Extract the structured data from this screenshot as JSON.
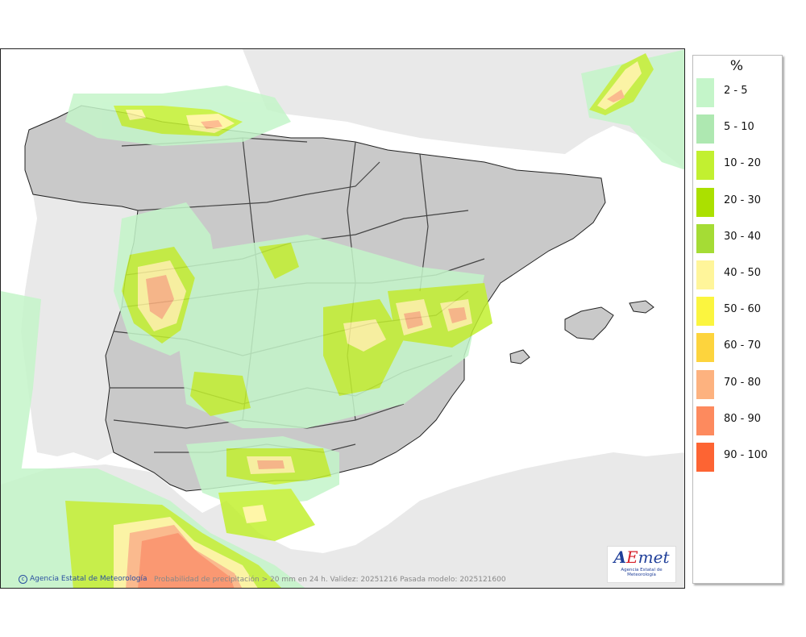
{
  "legend": {
    "title": "%",
    "items": [
      {
        "label": "2 - 5",
        "color": "#c4f5c9"
      },
      {
        "label": "5 - 10",
        "color": "#aee8b1"
      },
      {
        "label": "10 - 20",
        "color": "#c2f030"
      },
      {
        "label": "20 - 30",
        "color": "#abe000"
      },
      {
        "label": "30 - 40",
        "color": "#a5dc35"
      },
      {
        "label": "40 - 50",
        "color": "#fff59a"
      },
      {
        "label": "50 - 60",
        "color": "#fbf53f"
      },
      {
        "label": "60 - 70",
        "color": "#fdd43d"
      },
      {
        "label": "70 - 80",
        "color": "#fdb27f"
      },
      {
        "label": "80 - 90",
        "color": "#fd8a5e"
      },
      {
        "label": "90 - 100",
        "color": "#fd6433"
      }
    ]
  },
  "footer": {
    "agency": "Agencia Estatal de Meteorología",
    "caption": "Probabilidad de precipitación > 20 mm en 24 h. Validez: 20251216 Pasada modelo: 2025121600"
  },
  "logo": {
    "mark_a": "A",
    "mark_e": "E",
    "mark_rest": "met",
    "subtitle": "Agencia Estatal de Meteorología"
  },
  "colors": {
    "land": "#c9c9c9",
    "foreign_land": "#e9e9e9",
    "sea": "#ffffff",
    "border": "#222222"
  }
}
